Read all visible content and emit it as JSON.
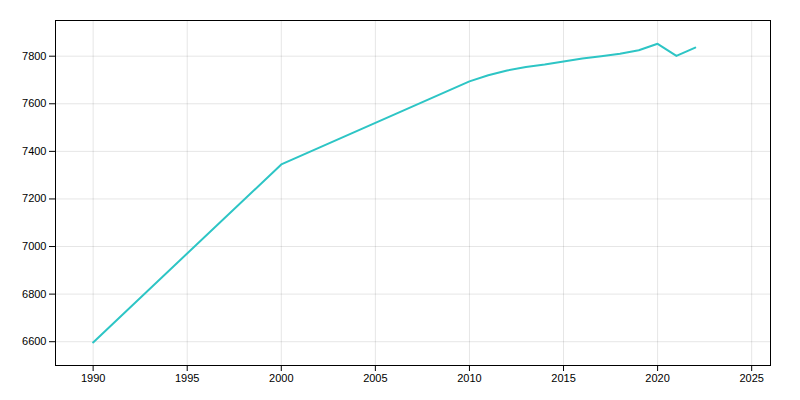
{
  "chart_data": {
    "type": "line",
    "x": [
      1990,
      2000,
      2010,
      2011,
      2012,
      2013,
      2014,
      2015,
      2016,
      2017,
      2018,
      2019,
      2020,
      2021,
      2022
    ],
    "values": [
      6597,
      7345,
      7694,
      7720,
      7740,
      7755,
      7765,
      7778,
      7790,
      7800,
      7810,
      7825,
      7852,
      7801,
      7836
    ],
    "color": "#2dc5c5",
    "xlim": [
      1988,
      2026
    ],
    "ylim": [
      6500,
      7950
    ],
    "xticks": [
      1990,
      1995,
      2000,
      2005,
      2010,
      2015,
      2020,
      2025
    ],
    "yticks": [
      6600,
      6800,
      7000,
      7200,
      7400,
      7600,
      7800
    ],
    "grid": true
  }
}
